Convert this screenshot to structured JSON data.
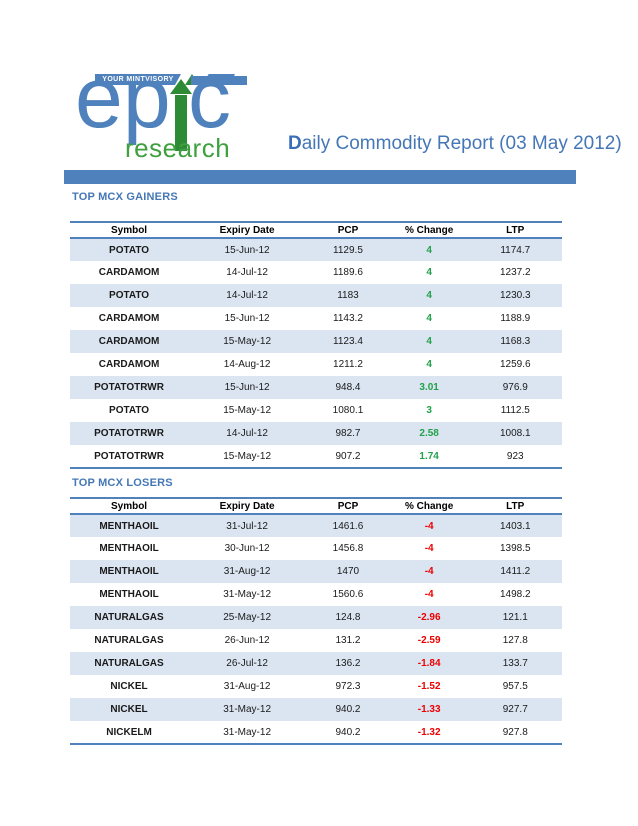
{
  "colors": {
    "accent_blue": "#4F81BD",
    "row_shade": "#DBE5F1",
    "gain_green": "#21A14A",
    "loss_red": "#EE0000",
    "title_blue": "#4577B6"
  },
  "logo": {
    "tagline": "YOUR MINTVISORY",
    "brand_part1": "ep",
    "brand_part2": "c",
    "brand_sub": "research",
    "brand_name": "epic research"
  },
  "title": {
    "lead": "D",
    "rest": "aily Commodity Report (03 May 2012)"
  },
  "sections": [
    {
      "heading": "TOP MCX GAINERS",
      "table": {
        "headers": [
          "Symbol",
          "Expiry Date",
          "PCP",
          "% Change",
          "LTP"
        ],
        "rows": [
          [
            "POTATO",
            "15-Jun-12",
            "1129.5",
            "4",
            "1174.7"
          ],
          [
            "CARDAMOM",
            "14-Jul-12",
            "1189.6",
            "4",
            "1237.2"
          ],
          [
            "POTATO",
            "14-Jul-12",
            "1183",
            "4",
            "1230.3"
          ],
          [
            "CARDAMOM",
            "15-Jun-12",
            "1143.2",
            "4",
            "1188.9"
          ],
          [
            "CARDAMOM",
            "15-May-12",
            "1123.4",
            "4",
            "1168.3"
          ],
          [
            "CARDAMOM",
            "14-Aug-12",
            "1211.2",
            "4",
            "1259.6"
          ],
          [
            "POTATOTRWR",
            "15-Jun-12",
            "948.4",
            "3.01",
            "976.9"
          ],
          [
            "POTATO",
            "15-May-12",
            "1080.1",
            "3",
            "1112.5"
          ],
          [
            "POTATOTRWR",
            "14-Jul-12",
            "982.7",
            "2.58",
            "1008.1"
          ],
          [
            "POTATOTRWR",
            "15-May-12",
            "907.2",
            "1.74",
            "923"
          ]
        ]
      }
    },
    {
      "heading": "TOP MCX LOSERS",
      "table": {
        "headers": [
          "Symbol",
          "Expiry Date",
          "PCP",
          "% Change",
          "LTP"
        ],
        "rows": [
          [
            "MENTHAOIL",
            "31-Jul-12",
            "1461.6",
            "-4",
            "1403.1"
          ],
          [
            "MENTHAOIL",
            "30-Jun-12",
            "1456.8",
            "-4",
            "1398.5"
          ],
          [
            "MENTHAOIL",
            "31-Aug-12",
            "1470",
            "-4",
            "1411.2"
          ],
          [
            "MENTHAOIL",
            "31-May-12",
            "1560.6",
            "-4",
            "1498.2"
          ],
          [
            "NATURALGAS",
            "25-May-12",
            "124.8",
            "-2.96",
            "121.1"
          ],
          [
            "NATURALGAS",
            "26-Jun-12",
            "131.2",
            "-2.59",
            "127.8"
          ],
          [
            "NATURALGAS",
            "26-Jul-12",
            "136.2",
            "-1.84",
            "133.7"
          ],
          [
            "NICKEL",
            "31-Aug-12",
            "972.3",
            "-1.52",
            "957.5"
          ],
          [
            "NICKEL",
            "31-May-12",
            "940.2",
            "-1.33",
            "927.7"
          ],
          [
            "NICKELM",
            "31-May-12",
            "940.2",
            "-1.32",
            "927.8"
          ]
        ]
      }
    }
  ]
}
